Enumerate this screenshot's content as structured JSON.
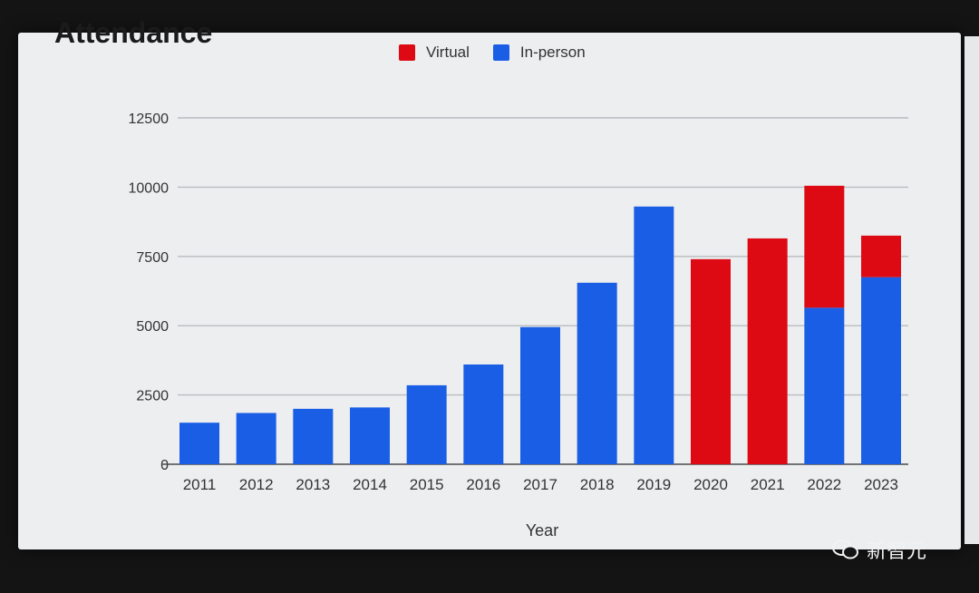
{
  "chart_data": {
    "type": "bar",
    "stacked": true,
    "title": "Attendance",
    "xlabel": "Year",
    "ylabel": "",
    "ylim": [
      0,
      12500
    ],
    "yticks": [
      "0",
      "2500",
      "5000",
      "7500",
      "10000",
      "12500"
    ],
    "grid": true,
    "legend_position": "top",
    "categories": [
      "2011",
      "2012",
      "2013",
      "2014",
      "2015",
      "2016",
      "2017",
      "2018",
      "2019",
      "2020",
      "2021",
      "2022",
      "2023"
    ],
    "series": [
      {
        "name": "In-person",
        "color": "#1a5ee6",
        "values": [
          1500,
          1850,
          2000,
          2050,
          2850,
          3600,
          4950,
          6550,
          9300,
          0,
          0,
          5650,
          6750
        ]
      },
      {
        "name": "Virtual",
        "color": "#dd0a14",
        "values": [
          0,
          0,
          0,
          0,
          0,
          0,
          0,
          0,
          0,
          7400,
          8150,
          4400,
          1500
        ]
      }
    ],
    "legend": [
      {
        "name": "Virtual",
        "color": "#dd0a14"
      },
      {
        "name": "In-person",
        "color": "#1a5ee6"
      }
    ]
  },
  "watermark": "新智元"
}
